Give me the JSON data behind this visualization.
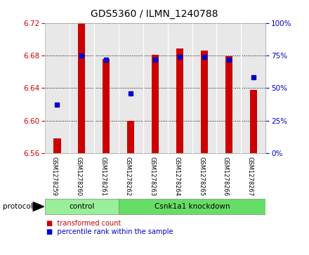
{
  "title": "GDS5360 / ILMN_1240788",
  "samples": [
    "GSM1278259",
    "GSM1278260",
    "GSM1278261",
    "GSM1278262",
    "GSM1278263",
    "GSM1278264",
    "GSM1278265",
    "GSM1278266",
    "GSM1278267"
  ],
  "transformed_counts": [
    6.578,
    6.722,
    6.676,
    6.6,
    6.681,
    6.689,
    6.686,
    6.679,
    6.638
  ],
  "percentile_ranks": [
    37,
    75,
    72,
    46,
    72,
    74,
    74,
    72,
    58
  ],
  "ylim": [
    6.56,
    6.72
  ],
  "y2lim": [
    0,
    100
  ],
  "y_ticks": [
    6.56,
    6.6,
    6.64,
    6.68,
    6.72
  ],
  "y2_ticks": [
    0,
    25,
    50,
    75,
    100
  ],
  "bar_color": "#cc0000",
  "dot_color": "#0000cc",
  "bar_bottom": 6.56,
  "protocol_groups": [
    {
      "label": "control",
      "start": 0,
      "end": 3,
      "color": "#99ee99"
    },
    {
      "label": "Csnk1a1 knockdown",
      "start": 3,
      "end": 9,
      "color": "#66dd66"
    }
  ],
  "protocol_label": "protocol",
  "legend_items": [
    {
      "label": "transformed count",
      "color": "#cc0000"
    },
    {
      "label": "percentile rank within the sample",
      "color": "#0000cc"
    }
  ],
  "tick_label_color_left": "#cc0000",
  "tick_label_color_right": "#0000cc",
  "axis_bg": "#e8e8e8",
  "fig_bg": "#ffffff",
  "bar_width": 0.3
}
